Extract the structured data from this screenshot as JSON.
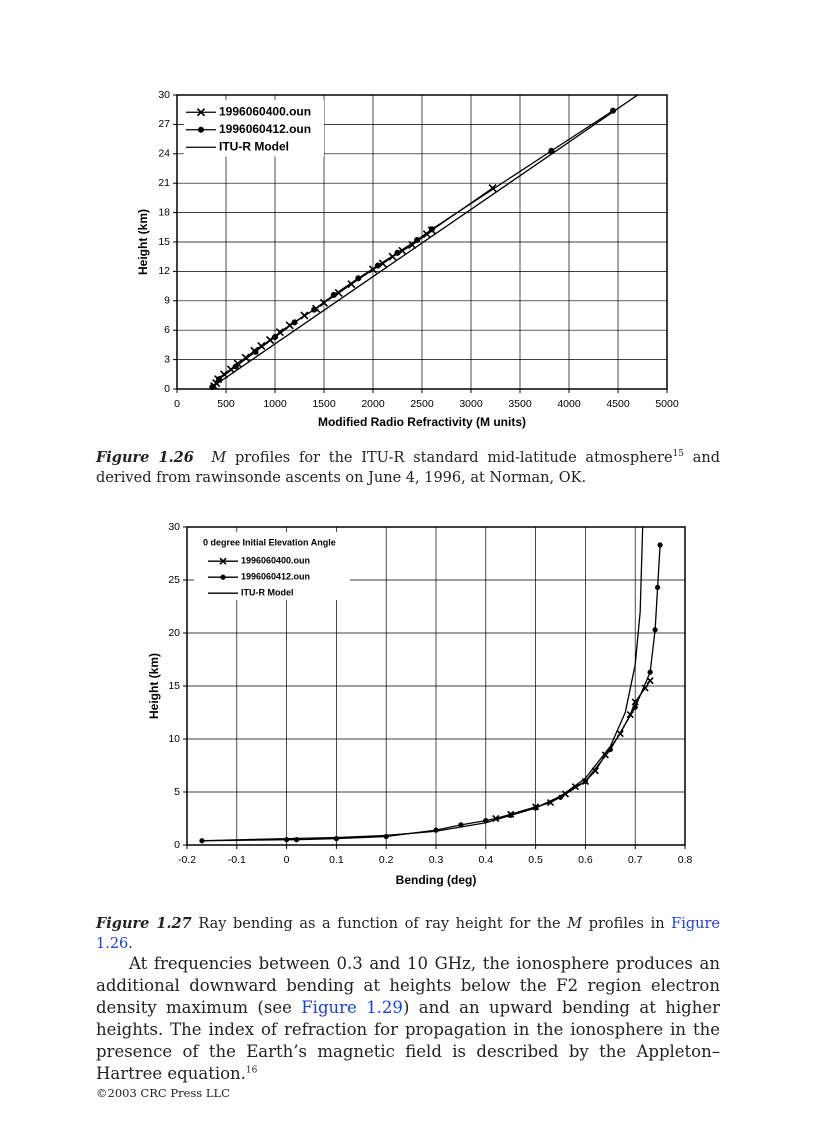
{
  "chart_data": [
    {
      "type": "line",
      "xlabel": "Modified Radio Refractivity (M units)",
      "ylabel": "Height (km)",
      "xlim": [
        0,
        5000
      ],
      "xticks": [
        0,
        500,
        1000,
        1500,
        2000,
        2500,
        3000,
        3500,
        4000,
        4500,
        5000
      ],
      "ylim": [
        0,
        30
      ],
      "yticks": [
        0,
        3,
        6,
        9,
        12,
        15,
        18,
        21,
        24,
        27,
        30
      ],
      "grid": true,
      "legend_position": "upper left",
      "series": [
        {
          "name": "1996060400.oun",
          "color": "#000000",
          "marker": "x",
          "x": [
            380,
            400,
            420,
            480,
            550,
            620,
            700,
            790,
            860,
            950,
            1050,
            1150,
            1300,
            1420,
            1500,
            1650,
            1780,
            2000,
            2100,
            2200,
            2300,
            2400,
            2550,
            2600,
            3220
          ],
          "values": [
            0.3,
            0.6,
            1.0,
            1.5,
            2.0,
            2.6,
            3.2,
            3.9,
            4.4,
            5.0,
            5.8,
            6.5,
            7.5,
            8.2,
            8.8,
            9.8,
            10.7,
            12.2,
            12.8,
            13.5,
            14.1,
            14.7,
            15.8,
            16.2,
            20.5
          ]
        },
        {
          "name": "1996060412.oun",
          "color": "#000000",
          "marker": "circle",
          "x": [
            360,
            430,
            600,
            800,
            1000,
            1200,
            1400,
            1600,
            1850,
            2050,
            2250,
            2450,
            2600,
            3820,
            4450
          ],
          "values": [
            0.2,
            1.0,
            2.3,
            3.8,
            5.3,
            6.8,
            8.1,
            9.6,
            11.3,
            12.6,
            13.9,
            15.2,
            16.3,
            24.3,
            28.4
          ]
        },
        {
          "name": "ITU-R Model",
          "color": "#000000",
          "marker": "none",
          "x": [
            330,
            4700
          ],
          "values": [
            0,
            30
          ]
        }
      ]
    },
    {
      "type": "line",
      "xlabel": "Bending (deg)",
      "ylabel": "Height (km)",
      "legend_title": "0 degree Initial Elevation Angle",
      "xlim": [
        -0.2,
        0.8
      ],
      "xticks": [
        -0.2,
        -0.1,
        0,
        0.1,
        0.2,
        0.3,
        0.4,
        0.5,
        0.6,
        0.7,
        0.8
      ],
      "ylim": [
        0,
        30
      ],
      "yticks": [
        0,
        5,
        10,
        15,
        20,
        25,
        30
      ],
      "grid": true,
      "legend_position": "upper left",
      "series": [
        {
          "name": "1996060400.oun",
          "color": "#000000",
          "marker": "x",
          "x": [
            0.42,
            0.45,
            0.5,
            0.53,
            0.56,
            0.58,
            0.6,
            0.62,
            0.64,
            0.67,
            0.69,
            0.7,
            0.72,
            0.73
          ],
          "values": [
            2.5,
            2.9,
            3.6,
            4.0,
            4.8,
            5.5,
            6.0,
            7.0,
            8.5,
            10.5,
            12.3,
            13.5,
            14.8,
            15.5
          ]
        },
        {
          "name": "1996060412.oun",
          "color": "#000000",
          "marker": "circle",
          "x": [
            -0.17,
            0,
            0.02,
            0.1,
            0.2,
            0.3,
            0.35,
            0.4,
            0.45,
            0.5,
            0.55,
            0.6,
            0.65,
            0.7,
            0.73,
            0.74,
            0.745,
            0.75
          ],
          "values": [
            0.4,
            0.5,
            0.5,
            0.6,
            0.8,
            1.4,
            1.9,
            2.3,
            2.8,
            3.5,
            4.5,
            6.0,
            9.0,
            13.0,
            16.3,
            20.3,
            24.3,
            28.3
          ]
        },
        {
          "name": "ITU-R Model",
          "color": "#000000",
          "marker": "none",
          "x": [
            -0.17,
            0,
            0.1,
            0.2,
            0.3,
            0.4,
            0.5,
            0.55,
            0.6,
            0.65,
            0.68,
            0.7,
            0.71,
            0.715
          ],
          "values": [
            0.4,
            0.6,
            0.7,
            0.9,
            1.3,
            2.1,
            3.5,
            4.6,
            6.3,
            9.3,
            12.5,
            17,
            22,
            30
          ]
        }
      ]
    }
  ],
  "caption_1": {
    "label": "Figure 1.26",
    "symbol": "M",
    "text": " profiles for the ITU-R standard mid-latitude atmosphere",
    "ref": "15",
    "text_end": " and derived from rawinsonde ascents on June 4, 1996, at Norman, OK."
  },
  "caption_2": {
    "label": "Figure 1.27",
    "text": " Ray bending as a function of ray height for the ",
    "symbol": "M",
    "text_mid": " profiles in ",
    "link": "Figure 1.26",
    "text_end": "."
  },
  "paragraph": {
    "text": "At frequencies between 0.3 and 10 GHz, the ionosphere produces an additional downward bending at heights below the F2 region electron density maximum (see ",
    "link": "Figure 1.29",
    "text_end": ") and an upward bending at higher heights. The index of refraction for propagation in the ionosphere in the presence of the Earth’s magnetic field is described by the Appleton–Hartree equation.",
    "ref": "16"
  },
  "footer": "©2003 CRC Press LLC"
}
